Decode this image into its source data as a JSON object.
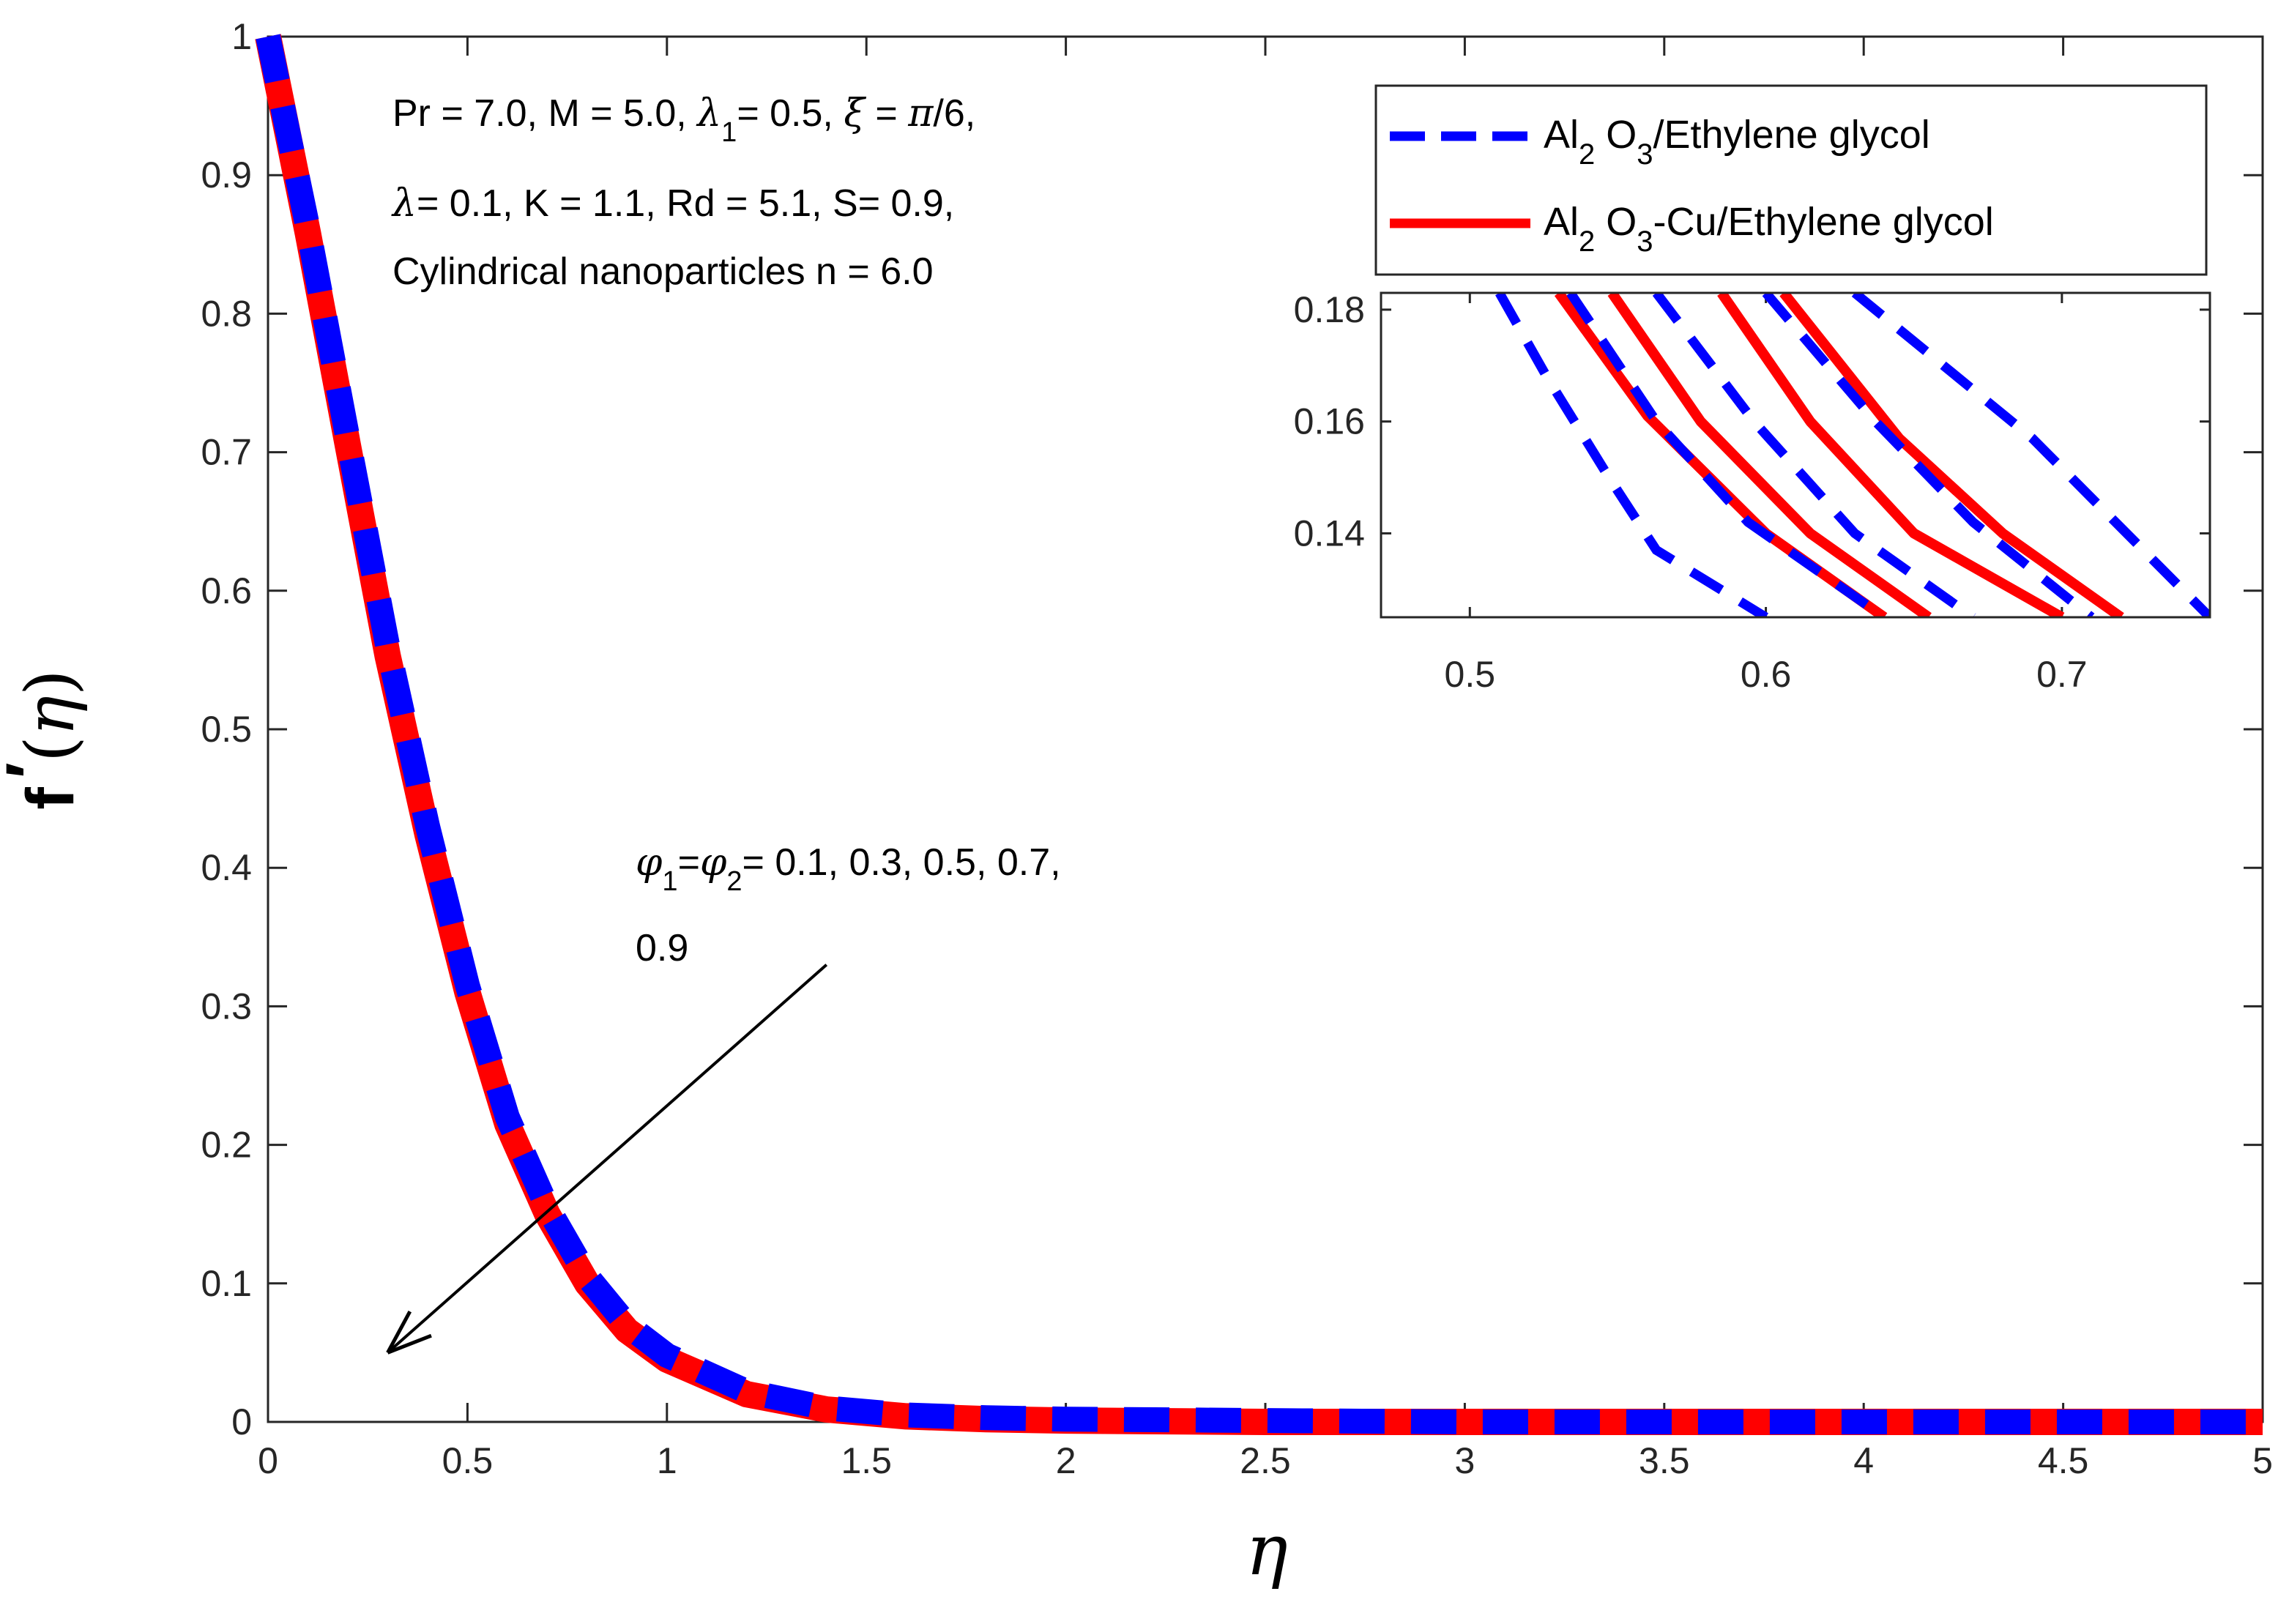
{
  "chart_data": {
    "type": "line",
    "title": "",
    "xlabel": "η",
    "ylabel_main": "f",
    "ylabel_prime": "′",
    "ylabel_open": "(",
    "ylabel_eta": "η",
    "ylabel_close": ")",
    "xlim": [
      0,
      5
    ],
    "ylim": [
      0,
      1
    ],
    "xticks": [
      "0",
      "0.5",
      "1",
      "1.5",
      "2",
      "2.5",
      "3",
      "3.5",
      "4",
      "4.5",
      "5"
    ],
    "yticks": [
      "0",
      "0.1",
      "0.2",
      "0.3",
      "0.4",
      "0.5",
      "0.6",
      "0.7",
      "0.8",
      "0.9",
      "1"
    ],
    "x": [
      0,
      0.1,
      0.2,
      0.3,
      0.4,
      0.5,
      0.6,
      0.7,
      0.8,
      0.9,
      1.0,
      1.2,
      1.4,
      1.6,
      1.8,
      2.0,
      2.5,
      3.0,
      3.5,
      4.0,
      4.5,
      5.0
    ],
    "series": [
      {
        "name": "Al2 O3/Ethylene glycol",
        "color": "#0000ff",
        "style": "dashed",
        "values": [
          1.0,
          0.862,
          0.71,
          0.56,
          0.43,
          0.315,
          0.22,
          0.155,
          0.105,
          0.07,
          0.048,
          0.022,
          0.01,
          0.005,
          0.003,
          0.002,
          0.001,
          0.0,
          0.0,
          0.0,
          0.0,
          0.0
        ]
      },
      {
        "name": "Al2 O3-Cu/Ethylene glycol",
        "color": "#ff0000",
        "style": "solid",
        "values": [
          1.0,
          0.858,
          0.705,
          0.553,
          0.424,
          0.31,
          0.215,
          0.15,
          0.1,
          0.066,
          0.045,
          0.02,
          0.009,
          0.004,
          0.002,
          0.001,
          0.0,
          0.0,
          0.0,
          0.0,
          0.0,
          0.0
        ]
      }
    ],
    "legend": {
      "placement": "top-right",
      "entries": [
        {
          "base": "Al",
          "sub1": "2",
          "mid": " O",
          "sub2": "3",
          "tail": "/Ethylene glycol",
          "color": "#0000ff",
          "style": "dashed"
        },
        {
          "base": "Al",
          "sub1": "2",
          "mid": " O",
          "sub2": "3",
          "tail": "-Cu/Ethylene glycol",
          "color": "#ff0000",
          "style": "solid"
        }
      ]
    },
    "annotations": {
      "line1": {
        "a": "Pr = 7.0, M = 5.0,  ",
        "lam": "λ",
        "lamsub": "1",
        "b": "= 0.5, ",
        "xi": "ξ",
        "c": " = ",
        "pi": "π",
        "d": "/6,"
      },
      "line2": {
        "lam": "λ",
        "a": "= 0.1, K = 1.1, Rd = 5.1, S= 0.9,"
      },
      "line3": "Cylindrical nanoparticles n = 6.0",
      "phi_label": {
        "phi": "φ",
        "sub1": "1",
        "eq": "=",
        "sub2": "2",
        "vals": "= 0.1, 0.3, 0.5, 0.7,",
        "cont": "0.9"
      },
      "arrow": {
        "from": [
          1.4,
          0.33
        ],
        "to": [
          0.3,
          0.05
        ]
      }
    },
    "inset": {
      "xlim": [
        0.47,
        0.75
      ],
      "ylim": [
        0.125,
        0.183
      ],
      "xticks": [
        "0.5",
        "0.6",
        "0.7"
      ],
      "xtick_values": [
        0.5,
        0.6,
        0.7
      ],
      "yticks": [
        "0.14",
        "0.16",
        "0.18"
      ],
      "ytick_values": [
        0.14,
        0.16,
        0.18
      ],
      "blue_lines": [
        [
          [
            0.51,
            0.183
          ],
          [
            0.526,
            0.168
          ],
          [
            0.547,
            0.15
          ],
          [
            0.563,
            0.137
          ],
          [
            0.6,
            0.125
          ]
        ],
        [
          [
            0.534,
            0.183
          ],
          [
            0.563,
            0.16
          ],
          [
            0.594,
            0.142
          ],
          [
            0.64,
            0.125
          ]
        ],
        [
          [
            0.563,
            0.183
          ],
          [
            0.596,
            0.16
          ],
          [
            0.63,
            0.14
          ],
          [
            0.67,
            0.125
          ]
        ],
        [
          [
            0.6,
            0.183
          ],
          [
            0.637,
            0.16
          ],
          [
            0.67,
            0.142
          ],
          [
            0.71,
            0.125
          ]
        ],
        [
          [
            0.63,
            0.183
          ],
          [
            0.69,
            0.157
          ],
          [
            0.75,
            0.125
          ]
        ]
      ],
      "red_lines": [
        [
          [
            0.53,
            0.183
          ],
          [
            0.56,
            0.161
          ],
          [
            0.6,
            0.14
          ],
          [
            0.64,
            0.125
          ]
        ],
        [
          [
            0.548,
            0.183
          ],
          [
            0.578,
            0.16
          ],
          [
            0.615,
            0.14
          ],
          [
            0.655,
            0.125
          ]
        ],
        [
          [
            0.585,
            0.183
          ],
          [
            0.615,
            0.16
          ],
          [
            0.65,
            0.14
          ],
          [
            0.7,
            0.125
          ]
        ],
        [
          [
            0.606,
            0.183
          ],
          [
            0.645,
            0.157
          ],
          [
            0.68,
            0.14
          ],
          [
            0.72,
            0.125
          ]
        ]
      ]
    }
  }
}
